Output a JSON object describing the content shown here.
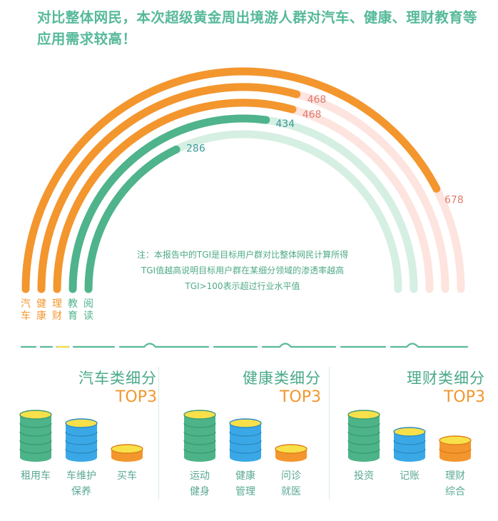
{
  "headline": "对比整体网民，本次超级黄金周出境游人群对汽车、健康、理财教育等应用需求较高！",
  "note": {
    "line1": "注：本报告中的TGI是目标用户群对比整体网民计算所得",
    "line2": "TGI值越高说明目标用户群在某细分领域的渗透率越高",
    "line3": "TGI>100表示超过行业水平值"
  },
  "chart_data": {
    "type": "radial-bar",
    "categories": [
      "汽车",
      "健康",
      "理财",
      "教育",
      "阅读"
    ],
    "values": [
      678,
      468,
      468,
      434,
      286
    ],
    "value_labels": [
      "678",
      "468",
      "468",
      "434",
      "286"
    ],
    "colors": [
      "#f3962e",
      "#f3962e",
      "#f3962e",
      "#4fb38c",
      "#4fb38c"
    ],
    "track_colors": [
      "#fde4df",
      "#fde4df",
      "#fde4df",
      "#d6efe3",
      "#d6efe3"
    ],
    "label_colors": [
      "#e07a6e",
      "#e07a6e",
      "#e07a6e",
      "#3c9a96",
      "#3c9a96"
    ],
    "category_label_colors": [
      "#f3962e",
      "#f3962e",
      "#f3962e",
      "#4fb38c",
      "#4fb38c"
    ],
    "full_scale": 800
  },
  "panels": [
    {
      "title": "汽车类细分",
      "subtitle": "TOP3",
      "items": [
        {
          "label_lines": [
            "租用车"
          ],
          "color": "green",
          "layers": 5
        },
        {
          "label_lines": [
            "车维护",
            "保养"
          ],
          "color": "blue",
          "layers": 4
        },
        {
          "label_lines": [
            "买车"
          ],
          "color": "orange",
          "layers": 1
        }
      ]
    },
    {
      "title": "健康类细分",
      "subtitle": "TOP3",
      "items": [
        {
          "label_lines": [
            "运动",
            "健身"
          ],
          "color": "green",
          "layers": 5
        },
        {
          "label_lines": [
            "健康",
            "管理"
          ],
          "color": "blue",
          "layers": 4
        },
        {
          "label_lines": [
            "问诊",
            "就医"
          ],
          "color": "orange",
          "layers": 1
        }
      ]
    },
    {
      "title": "理财类细分",
      "subtitle": "TOP3",
      "items": [
        {
          "label_lines": [
            "投资"
          ],
          "color": "green",
          "layers": 5
        },
        {
          "label_lines": [
            "记账"
          ],
          "color": "blue",
          "layers": 3
        },
        {
          "label_lines": [
            "理财",
            "综合"
          ],
          "color": "orange",
          "layers": 2
        }
      ]
    }
  ],
  "coin_palette": {
    "green": {
      "body": "#4db388",
      "line": "#3b9a73",
      "top": "#f7e04a",
      "rim": "#3b9a73"
    },
    "blue": {
      "body": "#3aa8e6",
      "line": "#2a8bc4",
      "top": "#f7e04a",
      "rim": "#2a8bc4"
    },
    "orange": {
      "body": "#f3962e",
      "line": "#e07d17",
      "top": "#f7e04a",
      "rim": "#e07d17"
    }
  }
}
